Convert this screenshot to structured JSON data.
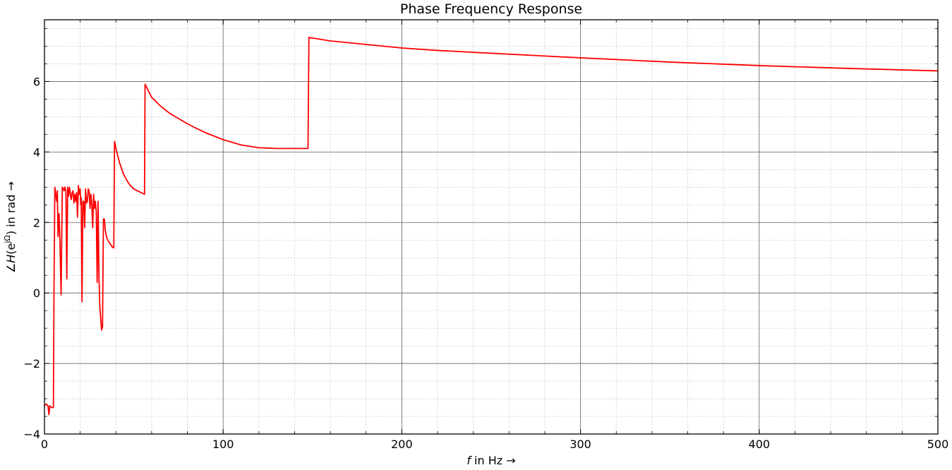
{
  "chart_data": {
    "type": "line",
    "title": "Phase Frequency Response",
    "xlabel_italic": "f",
    "xlabel_rest": " in Hz →",
    "ylabel_prefix": "∠",
    "ylabel_italic": "H",
    "ylabel_mid": "(e",
    "ylabel_sup": "jΩ",
    "ylabel_suffix": ") in rad →",
    "xlim": [
      0,
      500
    ],
    "ylim": [
      -4,
      7.75
    ],
    "xticks": [
      0,
      100,
      200,
      300,
      400,
      500
    ],
    "yticks": [
      -4,
      -2,
      0,
      2,
      4,
      6
    ],
    "grid": true,
    "minor_grid": true,
    "series": [
      {
        "color": "#ff0000",
        "x": [
          0,
          1,
          2,
          2.5,
          3,
          4,
          5,
          5.3,
          5.8,
          6.2,
          6.8,
          7.2,
          7.6,
          8.2,
          8.6,
          9.3,
          10,
          10.6,
          11,
          11.4,
          12,
          12.5,
          13,
          13.5,
          14,
          14.5,
          15,
          15.5,
          16,
          16.5,
          17,
          17.5,
          18,
          18.5,
          19,
          19.5,
          20,
          20.3,
          20.6,
          21,
          21.5,
          22,
          22.5,
          23,
          23.5,
          24,
          24.5,
          25,
          25.5,
          26,
          26.5,
          27,
          27.5,
          28,
          28.5,
          29,
          29.5,
          30,
          30.5,
          31,
          31.5,
          32,
          32.5,
          33,
          33.5,
          34,
          34.5,
          35,
          36,
          37,
          38,
          38.8,
          39.2,
          40,
          42,
          44,
          46,
          48,
          50,
          52,
          54,
          56,
          56.3,
          60,
          65,
          70,
          75,
          80,
          85,
          90,
          100,
          110,
          120,
          130,
          140,
          147.5,
          148,
          160,
          180,
          200,
          220,
          250,
          300,
          350,
          400,
          450,
          500
        ],
        "y": [
          -3.2,
          -3.15,
          -3.2,
          -3.45,
          -3.2,
          -3.25,
          -3.25,
          -0.2,
          3.0,
          2.85,
          2.6,
          2.9,
          1.6,
          2.25,
          1.6,
          -0.05,
          3.0,
          2.95,
          2.9,
          3.0,
          2.9,
          0.4,
          3.0,
          2.75,
          3.0,
          2.8,
          2.65,
          2.85,
          2.9,
          2.55,
          2.8,
          2.6,
          2.85,
          2.15,
          3.05,
          2.8,
          2.95,
          2.5,
          2.7,
          -0.25,
          2.6,
          2.6,
          1.85,
          2.95,
          2.55,
          2.6,
          2.95,
          2.9,
          2.4,
          2.8,
          2.5,
          1.85,
          2.8,
          2.4,
          2.6,
          2.3,
          0.3,
          2.6,
          0.5,
          -0.4,
          -0.75,
          -1.05,
          -0.95,
          2.1,
          2.1,
          1.8,
          1.65,
          1.55,
          1.45,
          1.38,
          1.3,
          1.28,
          4.3,
          4.1,
          3.7,
          3.4,
          3.2,
          3.05,
          2.95,
          2.9,
          2.85,
          2.8,
          5.92,
          5.55,
          5.3,
          5.1,
          4.95,
          4.8,
          4.67,
          4.55,
          4.35,
          4.2,
          4.12,
          4.1,
          4.1,
          4.1,
          7.25,
          7.15,
          7.05,
          6.95,
          6.88,
          6.8,
          6.67,
          6.55,
          6.45,
          6.37,
          6.3
        ]
      }
    ]
  }
}
